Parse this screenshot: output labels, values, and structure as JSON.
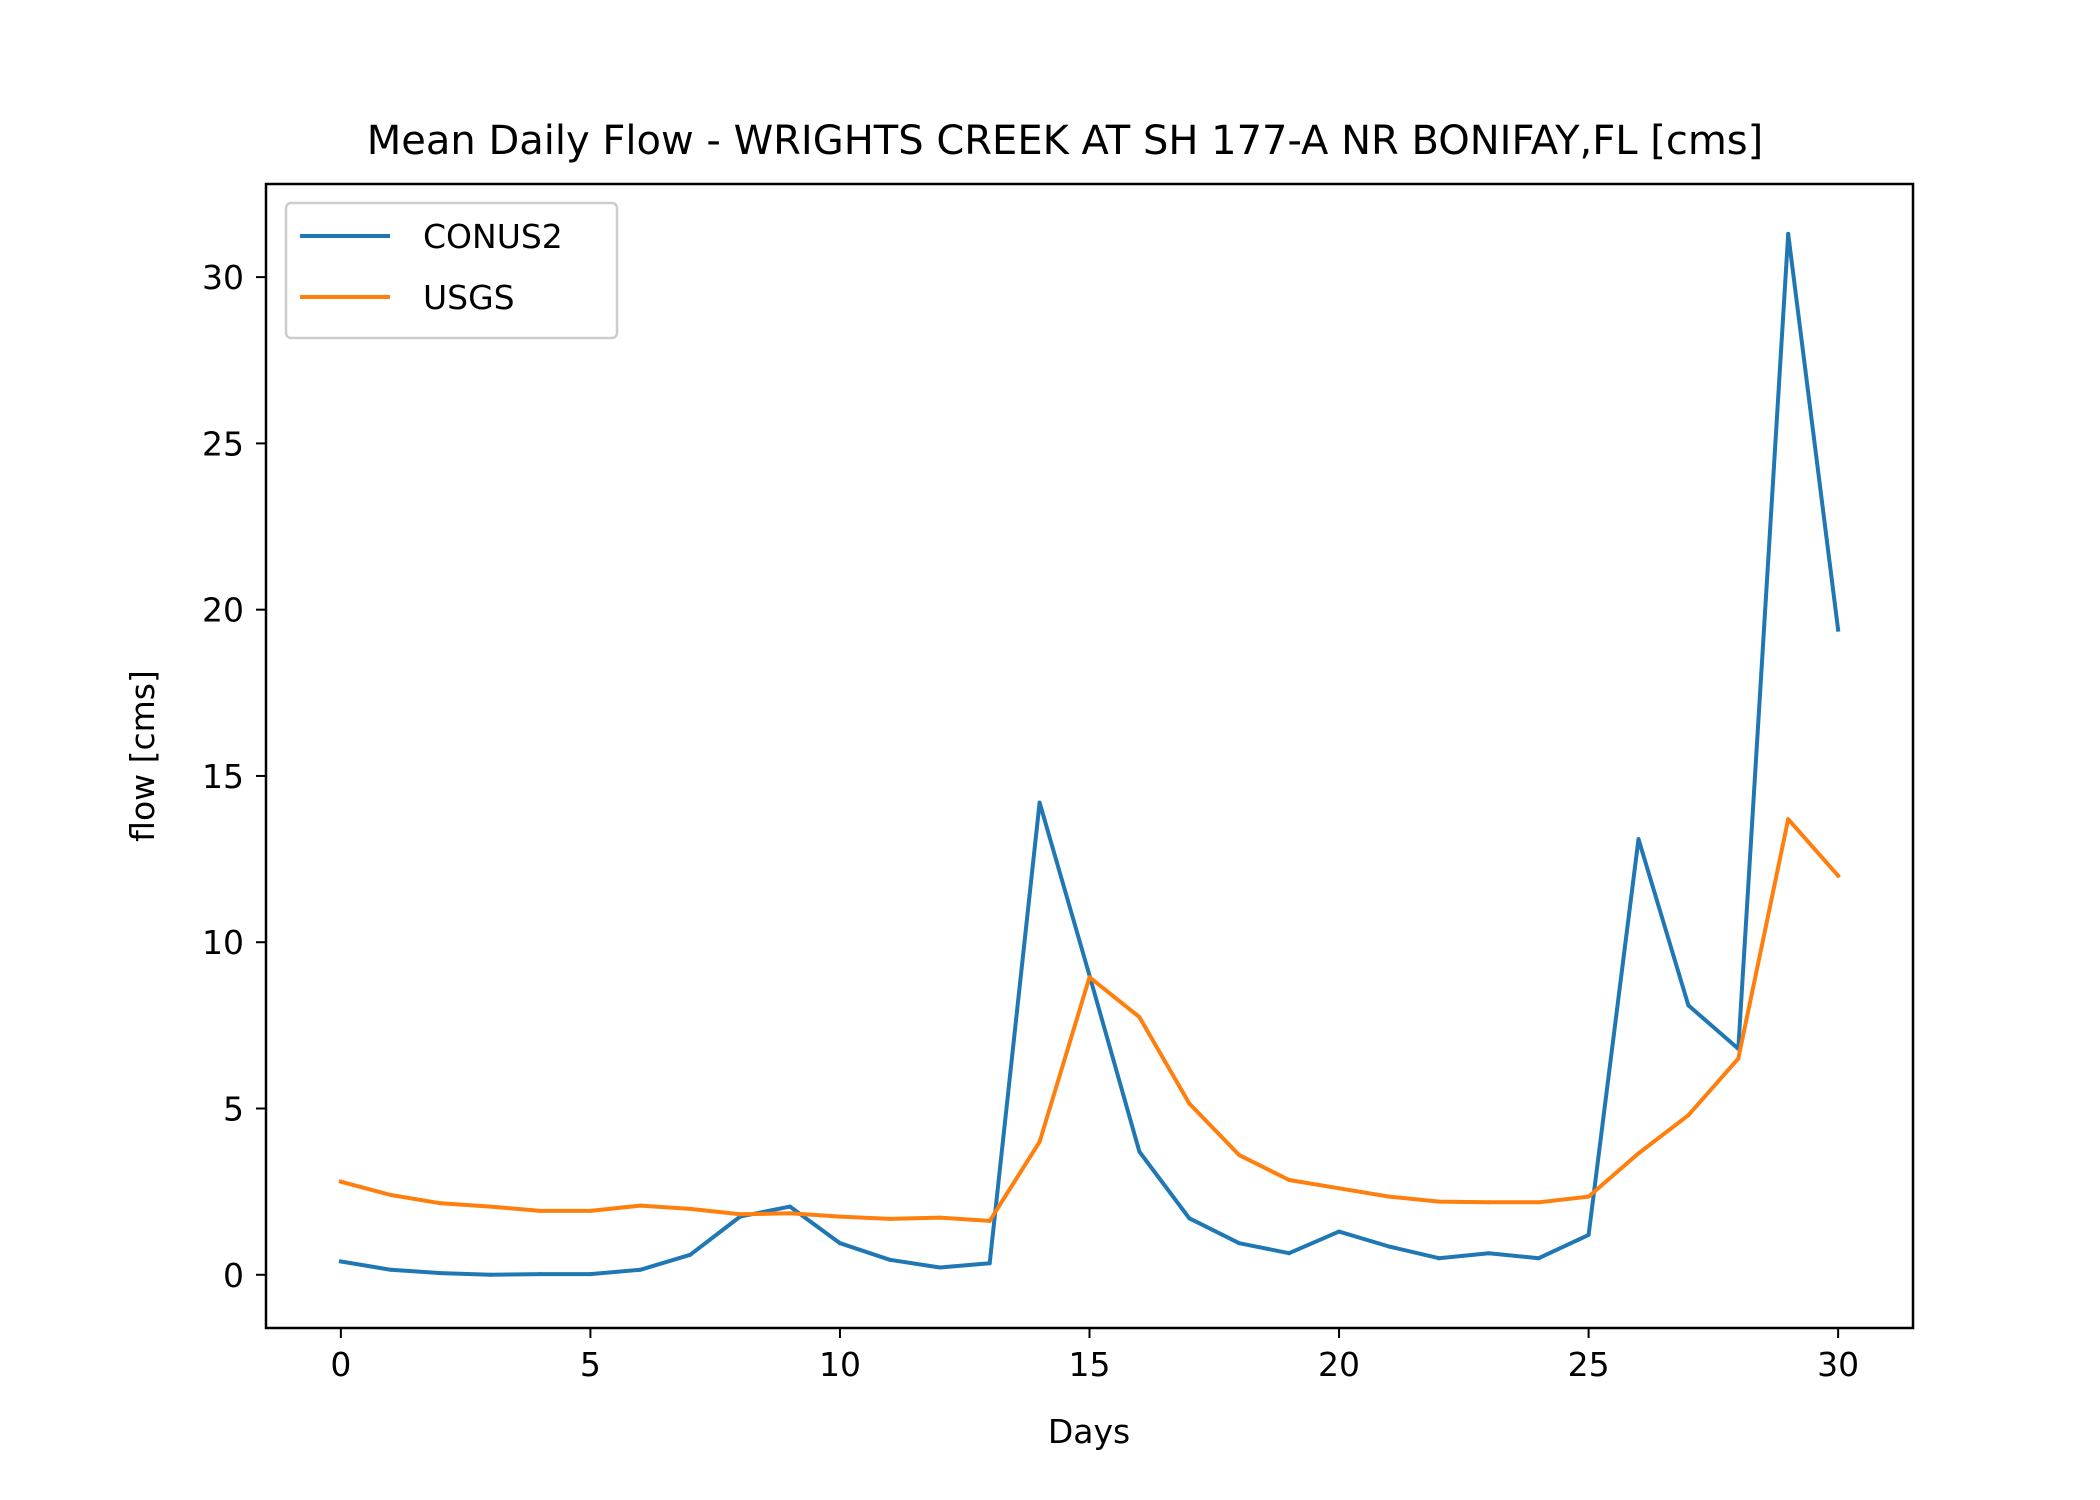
{
  "chart_data": {
    "type": "line",
    "title": "Mean Daily Flow - WRIGHTS CREEK AT SH 177-A NR BONIFAY,FL [cms]",
    "xlabel": "Days",
    "ylabel": "flow [cms]",
    "xlim": [
      -1.5,
      31.5
    ],
    "ylim": [
      -1.6,
      32.8
    ],
    "xticks": [
      0,
      5,
      10,
      15,
      20,
      25,
      30
    ],
    "yticks": [
      0,
      5,
      10,
      15,
      20,
      25,
      30
    ],
    "grid": false,
    "legend_position": "upper-left",
    "x": [
      0,
      1,
      2,
      3,
      4,
      5,
      6,
      7,
      8,
      9,
      10,
      11,
      12,
      13,
      14,
      15,
      16,
      17,
      18,
      19,
      20,
      21,
      22,
      23,
      24,
      25,
      26,
      27,
      28,
      29,
      30
    ],
    "series": [
      {
        "name": "CONUS2",
        "color": "#1f77b4",
        "values": [
          0.4,
          0.15,
          0.05,
          0.0,
          0.02,
          0.02,
          0.15,
          0.6,
          1.75,
          2.05,
          0.95,
          0.45,
          0.22,
          0.35,
          14.2,
          9.0,
          3.7,
          1.7,
          0.95,
          0.65,
          1.3,
          0.85,
          0.5,
          0.65,
          0.5,
          1.2,
          13.1,
          8.1,
          6.8,
          31.3,
          19.4
        ]
      },
      {
        "name": "USGS",
        "color": "#ff7f0e",
        "values": [
          2.8,
          2.4,
          2.15,
          2.05,
          1.92,
          1.92,
          2.08,
          1.98,
          1.82,
          1.85,
          1.75,
          1.68,
          1.72,
          1.62,
          4.0,
          8.95,
          7.75,
          5.15,
          3.6,
          2.85,
          2.6,
          2.35,
          2.2,
          2.18,
          2.18,
          2.35,
          3.65,
          4.8,
          6.5,
          13.7,
          12.0
        ]
      }
    ]
  }
}
